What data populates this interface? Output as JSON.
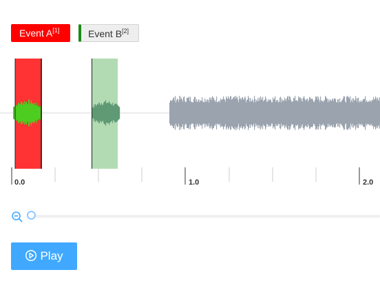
{
  "events": [
    {
      "label": "Event A",
      "ref": "[1]",
      "color": "#ff0000"
    },
    {
      "label": "Event B",
      "ref": "[2]",
      "color": "#1a8a1a"
    }
  ],
  "timeline": {
    "ticks": [
      "0.0",
      "1.0",
      "2.0"
    ]
  },
  "zoom": {
    "icon": "zoom-out-icon",
    "level": 0
  },
  "player": {
    "play_label": "Play",
    "icon": "play-circle-icon",
    "accent": "#40a9ff"
  },
  "colors": {
    "waveform": "#9aa3ae",
    "region_a": "#ff3333",
    "region_b": "#b3dbb3",
    "wave_in_region_a": "#4ccd1f",
    "wave_in_region_b": "#5f9a74"
  }
}
